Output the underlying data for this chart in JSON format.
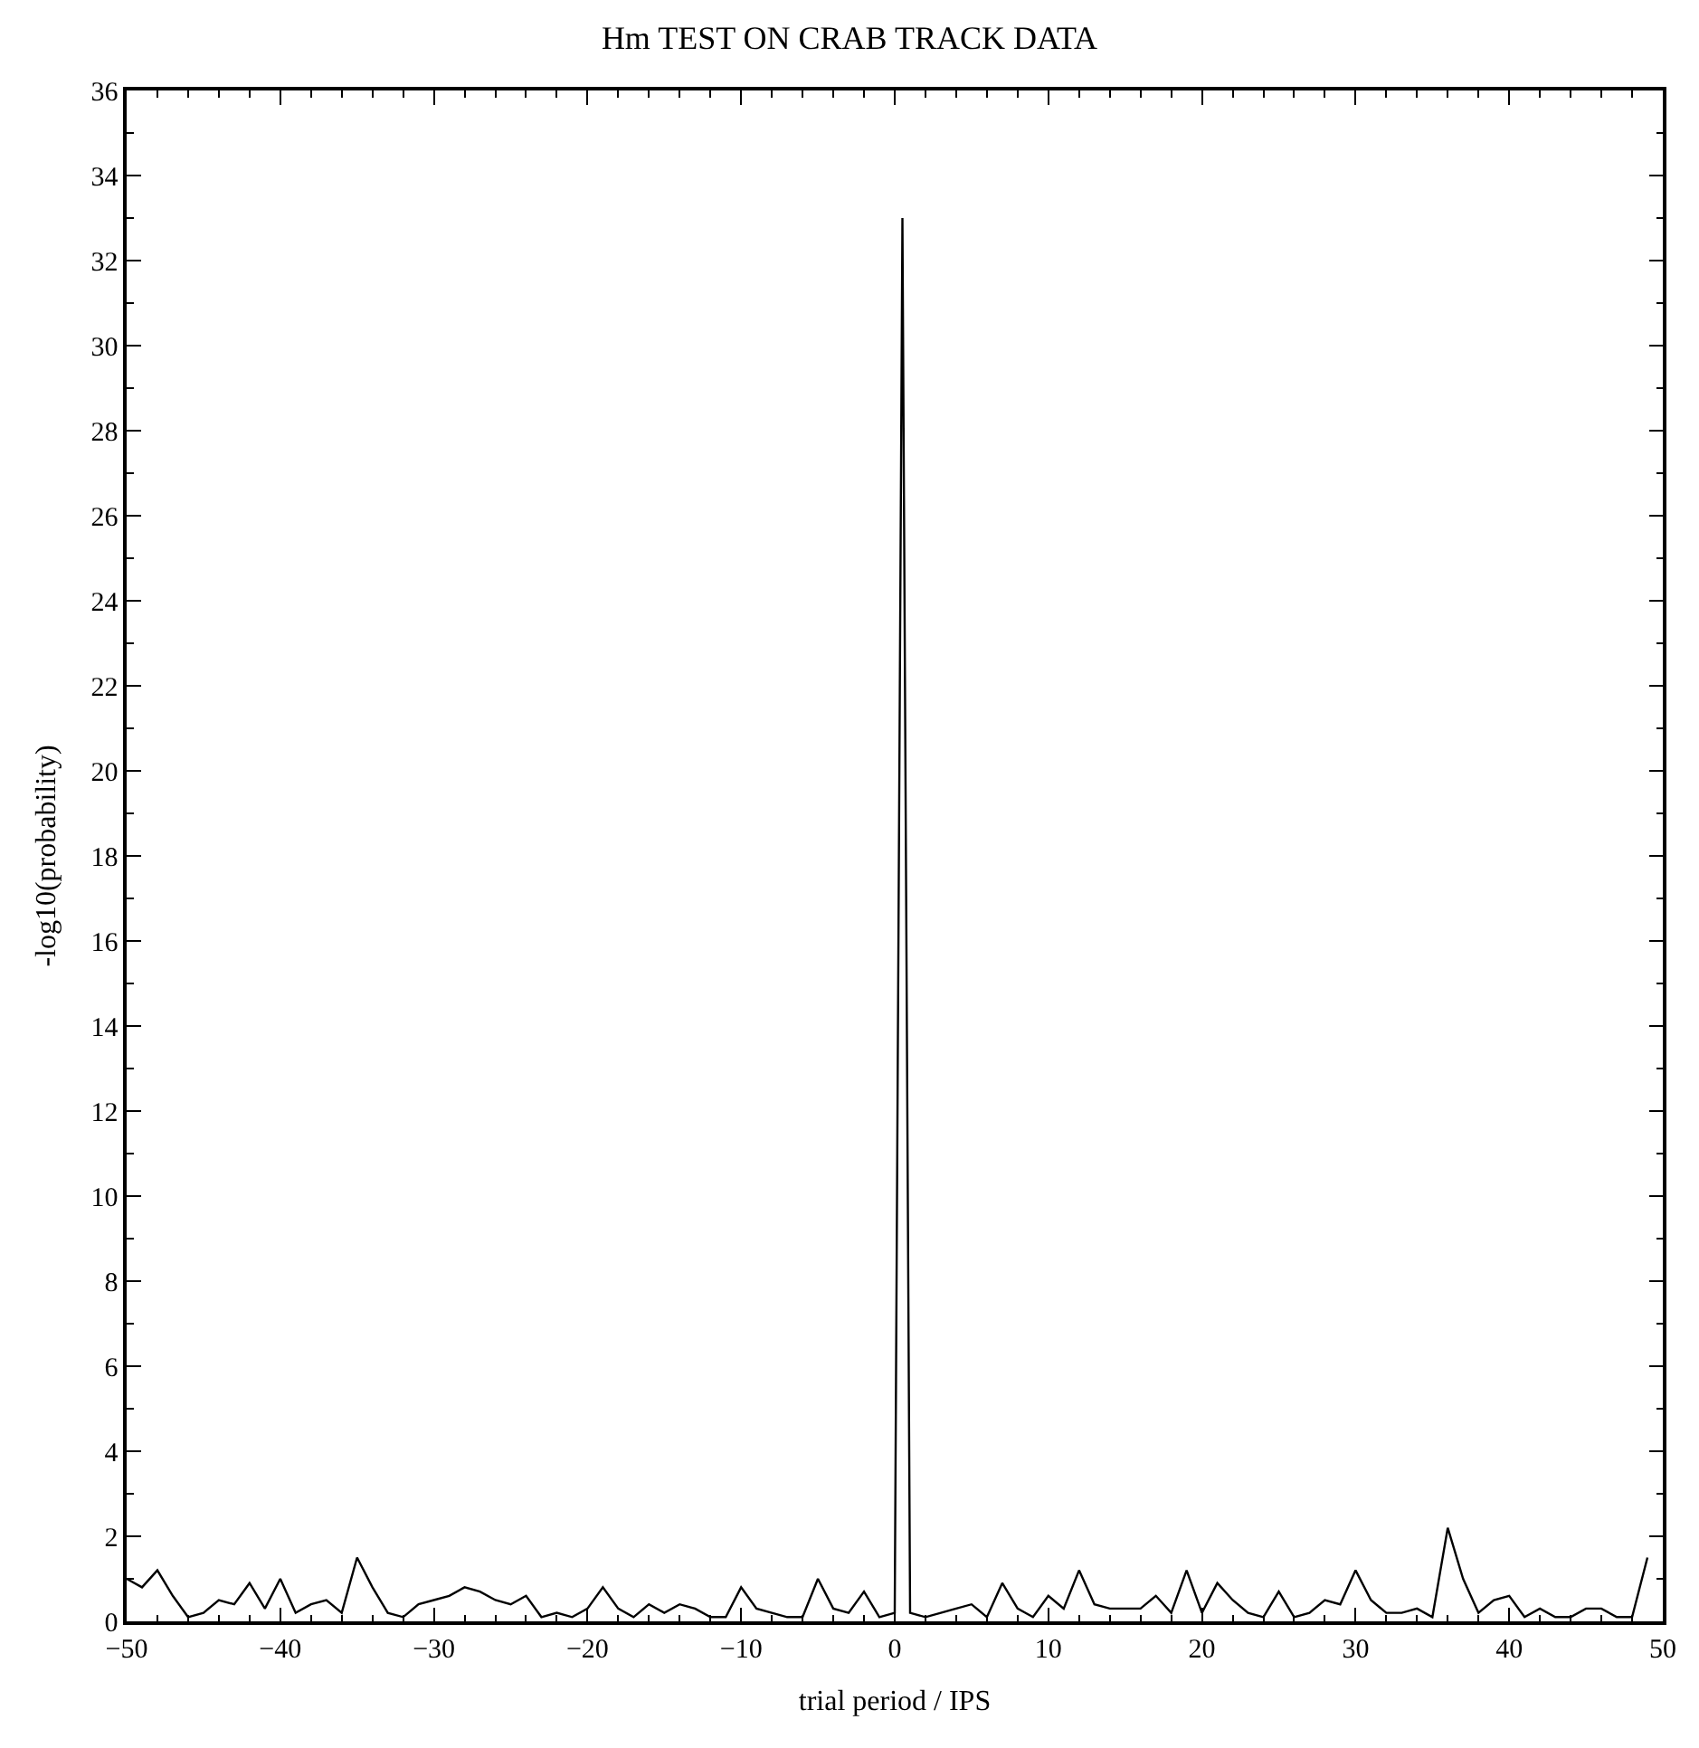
{
  "chart_data": {
    "type": "line",
    "title": "Hm TEST ON CRAB TRACK DATA",
    "xlabel": "trial period / IPS",
    "ylabel": "-log10(probability)",
    "x": [
      -50,
      -49,
      -48,
      -47,
      -46,
      -45,
      -44,
      -43,
      -42,
      -41,
      -40,
      -39,
      -38,
      -37,
      -36,
      -35,
      -34,
      -33,
      -32,
      -31,
      -30,
      -29,
      -28,
      -27,
      -26,
      -25,
      -24,
      -23,
      -22,
      -21,
      -20,
      -19,
      -18,
      -17,
      -16,
      -15,
      -14,
      -13,
      -12,
      -11,
      -10,
      -9,
      -8,
      -7,
      -6,
      -5,
      -4,
      -3,
      -2,
      -1,
      0,
      0.5,
      1,
      2,
      3,
      4,
      5,
      6,
      7,
      8,
      9,
      10,
      11,
      12,
      13,
      14,
      15,
      16,
      17,
      18,
      19,
      20,
      21,
      22,
      23,
      24,
      25,
      26,
      27,
      28,
      29,
      30,
      31,
      32,
      33,
      34,
      35,
      36,
      37,
      38,
      39,
      40,
      41,
      42,
      43,
      44,
      45,
      46,
      47,
      48,
      49
    ],
    "series": [
      {
        "color": "#000000",
        "values": [
          1.0,
          0.8,
          1.2,
          0.6,
          0.1,
          0.2,
          0.5,
          0.4,
          0.9,
          0.3,
          1.0,
          0.2,
          0.4,
          0.5,
          0.2,
          1.5,
          0.8,
          0.2,
          0.1,
          0.4,
          0.5,
          0.6,
          0.8,
          0.7,
          0.5,
          0.4,
          0.6,
          0.1,
          0.2,
          0.1,
          0.3,
          0.8,
          0.3,
          0.1,
          0.4,
          0.2,
          0.4,
          0.3,
          0.1,
          0.1,
          0.8,
          0.3,
          0.2,
          0.1,
          0.1,
          1.0,
          0.3,
          0.2,
          0.7,
          0.1,
          0.2,
          33,
          0.2,
          0.1,
          0.2,
          0.3,
          0.4,
          0.1,
          0.9,
          0.3,
          0.1,
          0.6,
          0.3,
          1.2,
          0.4,
          0.3,
          0.3,
          0.3,
          0.6,
          0.2,
          1.2,
          0.2,
          0.9,
          0.5,
          0.2,
          0.1,
          0.7,
          0.1,
          0.2,
          0.5,
          0.4,
          1.2,
          0.5,
          0.2,
          0.2,
          0.3,
          0.1,
          2.2,
          1.0,
          0.2,
          0.5,
          0.6,
          0.1,
          0.3,
          0.1,
          0.1,
          0.3,
          0.3,
          0.1,
          0.1,
          1.5
        ]
      }
    ],
    "xlim": [
      -50,
      50
    ],
    "xticks": [
      -50,
      -40,
      -30,
      -20,
      -10,
      0,
      10,
      20,
      30,
      40,
      50
    ],
    "ylim": [
      0,
      36
    ],
    "yticks": [
      0,
      2,
      4,
      6,
      8,
      10,
      12,
      14,
      16,
      18,
      20,
      22,
      24,
      26,
      28,
      30,
      32,
      34,
      36
    ],
    "legend": false,
    "marker": "none",
    "line_style": "solid"
  }
}
